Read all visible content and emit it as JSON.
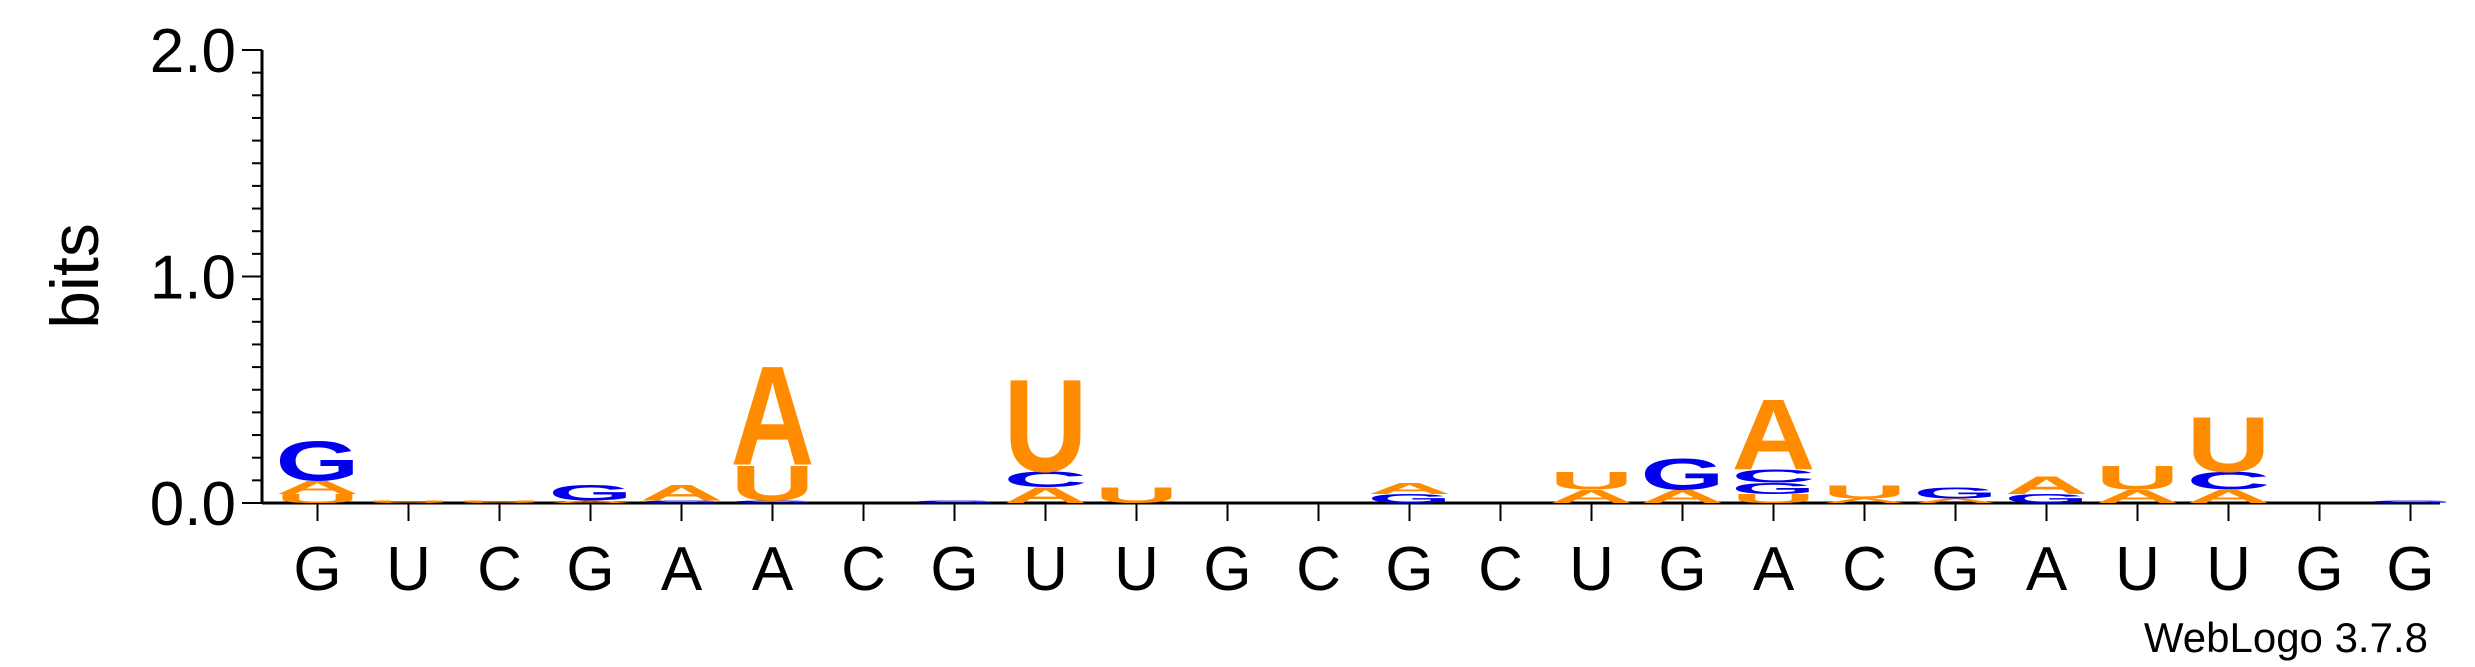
{
  "colors": {
    "A": "#ff8c00",
    "U": "#ff8c00",
    "G": "#0000ee",
    "C": "#0000ee",
    "axis": "#000000",
    "text": "#000000"
  },
  "credit": "WebLogo 3.7.8",
  "chart_data": {
    "type": "sequence-logo",
    "title": "",
    "xlabel": "",
    "ylabel": "bits",
    "ylim": [
      0,
      2.0
    ],
    "yticks": [
      {
        "value": 0.0,
        "label": "0.0"
      },
      {
        "value": 1.0,
        "label": "1.0"
      },
      {
        "value": 2.0,
        "label": "2.0"
      }
    ],
    "positions": [
      {
        "label": "G",
        "stack": [
          {
            "letter": "U",
            "bits": 0.04
          },
          {
            "letter": "A",
            "bits": 0.06
          },
          {
            "letter": "G",
            "bits": 0.18
          }
        ]
      },
      {
        "label": "U",
        "stack": [
          {
            "letter": "U",
            "bits": 0.01
          }
        ]
      },
      {
        "label": "C",
        "stack": [
          {
            "letter": "U",
            "bits": 0.01
          }
        ]
      },
      {
        "label": "G",
        "stack": [
          {
            "letter": "A",
            "bits": 0.01
          },
          {
            "letter": "G",
            "bits": 0.07
          }
        ]
      },
      {
        "label": "A",
        "stack": [
          {
            "letter": "G",
            "bits": 0.01
          },
          {
            "letter": "A",
            "bits": 0.07
          }
        ]
      },
      {
        "label": "A",
        "stack": [
          {
            "letter": "G",
            "bits": 0.01
          },
          {
            "letter": "U",
            "bits": 0.16
          },
          {
            "letter": "A",
            "bits": 0.45
          }
        ]
      },
      {
        "label": "C",
        "stack": []
      },
      {
        "label": "G",
        "stack": [
          {
            "letter": "G",
            "bits": 0.01
          }
        ]
      },
      {
        "label": "U",
        "stack": [
          {
            "letter": "A",
            "bits": 0.07
          },
          {
            "letter": "C",
            "bits": 0.07
          },
          {
            "letter": "U",
            "bits": 0.42
          }
        ]
      },
      {
        "label": "U",
        "stack": [
          {
            "letter": "U",
            "bits": 0.07
          }
        ]
      },
      {
        "label": "G",
        "stack": []
      },
      {
        "label": "C",
        "stack": []
      },
      {
        "label": "G",
        "stack": [
          {
            "letter": "G",
            "bits": 0.04
          },
          {
            "letter": "A",
            "bits": 0.05
          }
        ]
      },
      {
        "label": "C",
        "stack": []
      },
      {
        "label": "U",
        "stack": [
          {
            "letter": "A",
            "bits": 0.06
          },
          {
            "letter": "U",
            "bits": 0.08
          }
        ]
      },
      {
        "label": "G",
        "stack": [
          {
            "letter": "A",
            "bits": 0.06
          },
          {
            "letter": "G",
            "bits": 0.14
          }
        ]
      },
      {
        "label": "A",
        "stack": [
          {
            "letter": "U",
            "bits": 0.04
          },
          {
            "letter": "G",
            "bits": 0.05
          },
          {
            "letter": "C",
            "bits": 0.06
          },
          {
            "letter": "A",
            "bits": 0.32
          }
        ]
      },
      {
        "label": "C",
        "stack": [
          {
            "letter": "A",
            "bits": 0.02
          },
          {
            "letter": "U",
            "bits": 0.06
          }
        ]
      },
      {
        "label": "G",
        "stack": [
          {
            "letter": "A",
            "bits": 0.02
          },
          {
            "letter": "G",
            "bits": 0.05
          }
        ]
      },
      {
        "label": "A",
        "stack": [
          {
            "letter": "G",
            "bits": 0.04
          },
          {
            "letter": "A",
            "bits": 0.08
          }
        ]
      },
      {
        "label": "U",
        "stack": [
          {
            "letter": "A",
            "bits": 0.06
          },
          {
            "letter": "U",
            "bits": 0.11
          }
        ]
      },
      {
        "label": "U",
        "stack": [
          {
            "letter": "A",
            "bits": 0.06
          },
          {
            "letter": "C",
            "bits": 0.08
          },
          {
            "letter": "U",
            "bits": 0.25
          }
        ]
      },
      {
        "label": "G",
        "stack": []
      },
      {
        "label": "G",
        "stack": [
          {
            "letter": "G",
            "bits": 0.01
          }
        ]
      }
    ]
  }
}
